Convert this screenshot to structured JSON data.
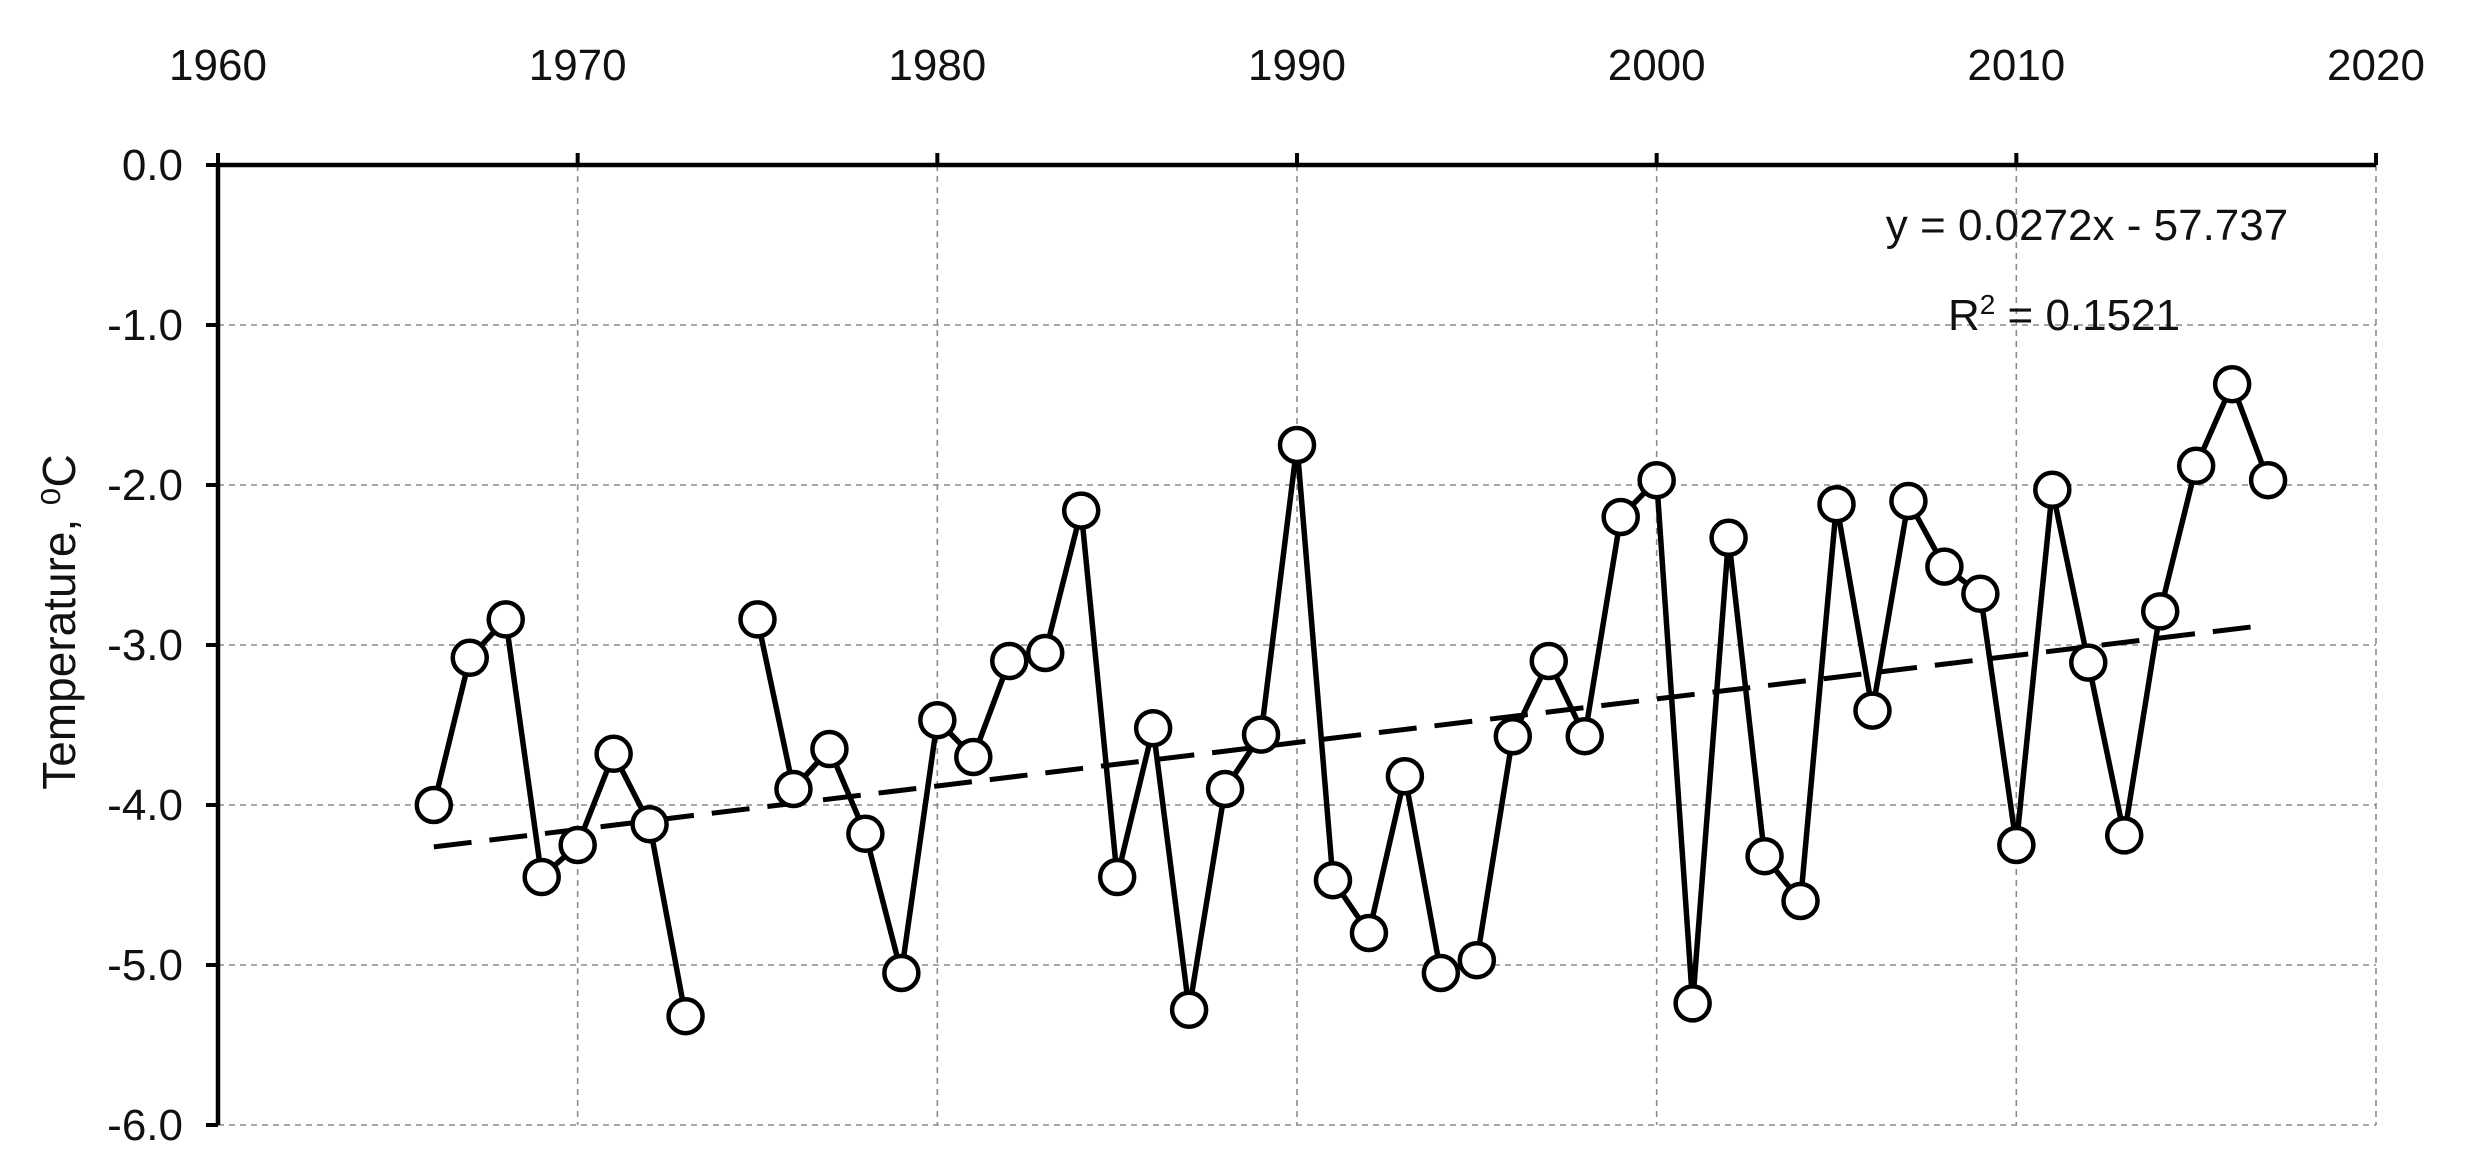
{
  "chart_data": {
    "type": "scatter",
    "title": "",
    "xlabel": "",
    "ylabel": "Temperature, ⁰C",
    "xlim": [
      1960,
      2020
    ],
    "ylim": [
      -6.0,
      0.0
    ],
    "x_ticks": [
      "1960",
      "1970",
      "1980",
      "1990",
      "2000",
      "2010",
      "2020"
    ],
    "y_ticks": [
      "0.0",
      "-1.0",
      "-2.0",
      "-3.0",
      "-4.0",
      "-5.0",
      "-6.0"
    ],
    "x_axis_position": "top",
    "grid": true,
    "series": [
      {
        "points": [
          [
            1966,
            -4.0
          ],
          [
            1967,
            -3.08
          ],
          [
            1968,
            -2.84
          ],
          [
            1969,
            -4.45
          ],
          [
            1970,
            -4.25
          ],
          [
            1971,
            -3.68
          ],
          [
            1972,
            -4.12
          ],
          [
            1973,
            -5.32
          ],
          [
            1975,
            -2.84
          ],
          [
            1976,
            -3.9
          ],
          [
            1977,
            -3.65
          ],
          [
            1978,
            -4.18
          ],
          [
            1979,
            -5.05
          ],
          [
            1980,
            -3.47
          ],
          [
            1981,
            -3.7
          ],
          [
            1982,
            -3.1
          ],
          [
            1983,
            -3.05
          ],
          [
            1984,
            -2.16
          ],
          [
            1985,
            -4.45
          ],
          [
            1986,
            -3.52
          ],
          [
            1987,
            -5.28
          ],
          [
            1988,
            -3.9
          ],
          [
            1989,
            -3.56
          ],
          [
            1990,
            -1.75
          ],
          [
            1991,
            -4.47
          ],
          [
            1992,
            -4.8
          ],
          [
            1993,
            -3.82
          ],
          [
            1994,
            -5.05
          ],
          [
            1995,
            -4.97
          ],
          [
            1996,
            -3.57
          ],
          [
            1997,
            -3.1
          ],
          [
            1998,
            -3.57
          ],
          [
            1999,
            -2.2
          ],
          [
            2000,
            -1.97
          ],
          [
            2001,
            -5.24
          ],
          [
            2002,
            -2.33
          ],
          [
            2003,
            -4.32
          ],
          [
            2004,
            -4.6
          ],
          [
            2005,
            -2.12
          ],
          [
            2006,
            -3.41
          ],
          [
            2007,
            -2.1
          ],
          [
            2008,
            -2.51
          ],
          [
            2009,
            -2.68
          ],
          [
            2010,
            -4.25
          ],
          [
            2011,
            -2.03
          ],
          [
            2012,
            -3.11
          ],
          [
            2013,
            -4.19
          ],
          [
            2014,
            -2.79
          ],
          [
            2015,
            -1.88
          ],
          [
            2016,
            -1.37
          ],
          [
            2017,
            -1.97
          ]
        ],
        "marker": "open-circle",
        "line": "solid"
      }
    ],
    "trendline": {
      "slope": 0.0272,
      "intercept": -57.737,
      "x_range": [
        1966,
        2017
      ],
      "style": "dashed"
    },
    "annotations": {
      "equation": "y = 0.0272x - 57.737",
      "r_squared_prefix": "R",
      "r_squared_sup": "2",
      "r_squared_suffix": " = 0.1521"
    }
  }
}
